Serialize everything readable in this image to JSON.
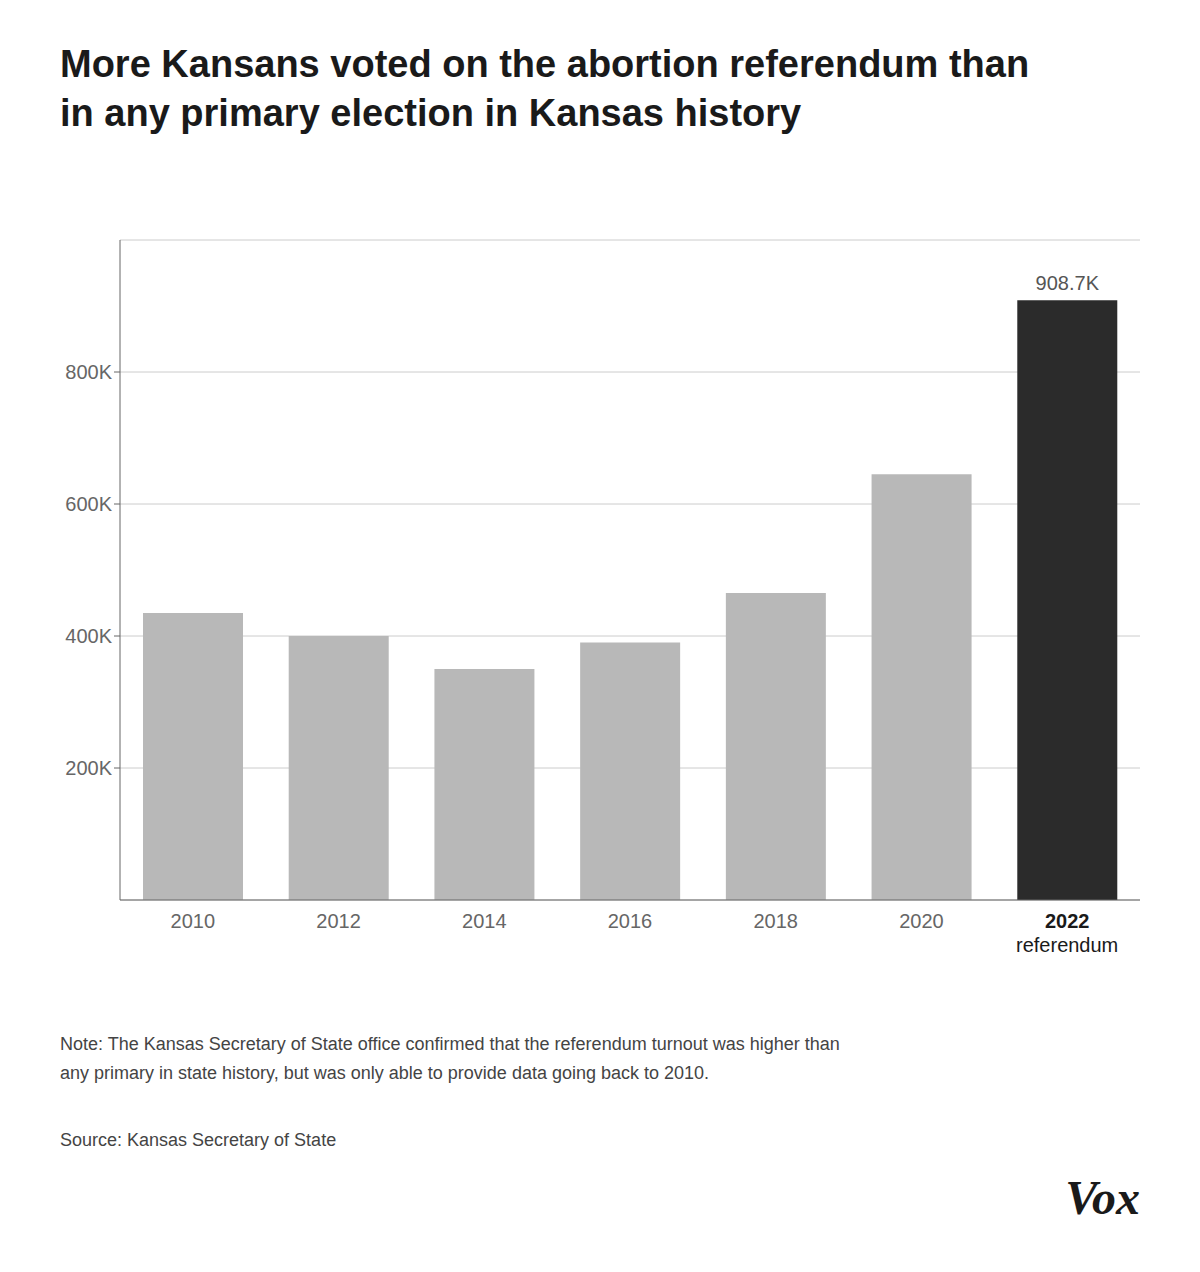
{
  "chart_data": {
    "type": "bar",
    "title": "More Kansans voted on the abortion referendum than\nin any primary election in Kansas history",
    "categories": [
      "2010",
      "2012",
      "2014",
      "2016",
      "2018",
      "2020",
      "2022\nreferendum"
    ],
    "values": [
      435000,
      400000,
      350000,
      390000,
      465000,
      645000,
      908700
    ],
    "value_labels": [
      null,
      null,
      null,
      null,
      null,
      null,
      "908.7K"
    ],
    "colors": [
      "#b8b8b8",
      "#b8b8b8",
      "#b8b8b8",
      "#b8b8b8",
      "#b8b8b8",
      "#b8b8b8",
      "#2b2b2b"
    ],
    "ylim": [
      0,
      1000000
    ],
    "yticks": [
      {
        "value": 200000,
        "label": "200K"
      },
      {
        "value": 400000,
        "label": "400K"
      },
      {
        "value": 600000,
        "label": "600K"
      },
      {
        "value": 800000,
        "label": "800K"
      }
    ],
    "grid": true,
    "note": "Note: The Kansas Secretary of State office confirmed that the referendum turnout was higher than\nany primary in state history, but was only able to provide data going back to 2010.",
    "source": "Source: Kansas Secretary of State",
    "credit": "Vox"
  }
}
